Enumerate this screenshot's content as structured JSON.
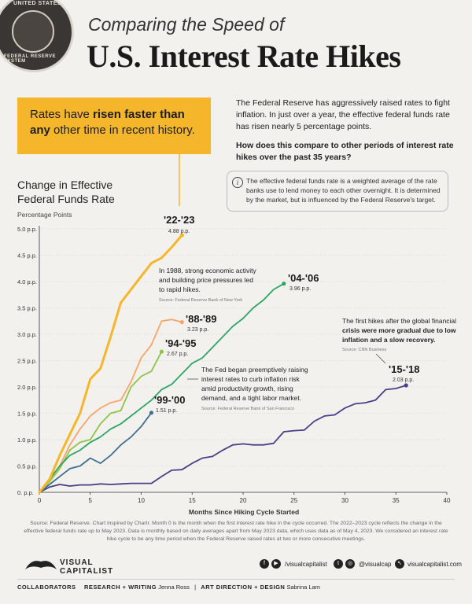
{
  "seal": {
    "text_top": "UNITED STATES",
    "text_bottom": "FEDERAL RESERVE SYSTEM"
  },
  "subtitle": "Comparing the Speed of",
  "title": "U.S. Interest Rate Hikes",
  "callout": {
    "pre": "Rates have ",
    "bold": "risen faster than any",
    "post": " other time in recent history."
  },
  "intro": {
    "p1": "The Federal Reserve has aggressively raised rates to fight inflation. In just over a year, the effective federal funds rate has risen nearly 5 percentage points.",
    "p2": "How does this compare to other periods of interest rate hikes over the past 35 years?"
  },
  "info": {
    "icon": "i",
    "text": "The effective federal funds rate is a weighted average of the rate banks use to lend money to each other overnight. It is determined by the market, but is influenced by the Federal Reserve's target."
  },
  "chart_title": "Change in Effective Federal Funds Rate",
  "ylabel": "Percentage Points",
  "xlabel": "Months Since Hiking Cycle Started",
  "annotations": {
    "a1988_l1": "In 1988, strong economic activity",
    "a1988_l2": "and building price pressures led",
    "a1988_l3": "to rapid hikes.",
    "a1988_src": "Source: Federal Reserve Bank of New York",
    "a1999_l1": "The Fed began preemptively raising",
    "a1999_l2": "interest rates to curb inflation risk",
    "a1999_l3": "amid productivity growth, rising",
    "a1999_l4": "demand, and a tight labor market.",
    "a1999_src": "Source: Federal Reserve Bank of San Francisco",
    "a2015_l1": "The first hikes after the global financial",
    "a2015_l2": "crisis were more gradual due to low",
    "a2015_l3": "inflation and a slow recovery.",
    "a2015_src": "Source: CNN Business"
  },
  "colors": {
    "c2223": "#f5b62b",
    "c8889": "#f4a56a",
    "c9495": "#8fc44a",
    "c0406": "#2ea565",
    "c9900": "#3f6f8e",
    "c1518": "#4a3f86"
  },
  "chart_data": {
    "type": "line",
    "title": "Change in Effective Federal Funds Rate",
    "xlabel": "Months Since Hiking Cycle Started",
    "ylabel": "Percentage Points",
    "xlim": [
      0,
      40
    ],
    "ylim": [
      0,
      5
    ],
    "x_ticks": [
      "0",
      "5",
      "10",
      "15",
      "20",
      "25",
      "30",
      "35",
      "40"
    ],
    "y_ticks": [
      "0. p.p.",
      "0.5 p.p.",
      "1.0 p.p.",
      "1.5 p.p.",
      "2.0 p.p.",
      "2.5 p.p.",
      "3.0 p.p.",
      "3.5 p.p.",
      "4.0 p.p.",
      "4.5 p.p.",
      "5.0 p.p."
    ],
    "series": [
      {
        "name": "'22-'23",
        "value_label": "4.88 p.p.",
        "color": "#f5b62b",
        "width": 3,
        "x": [
          0,
          1,
          2,
          3,
          4,
          5,
          6,
          7,
          8,
          9,
          10,
          11,
          12,
          13,
          14
        ],
        "y": [
          0,
          0.25,
          0.7,
          1.1,
          1.5,
          2.15,
          2.35,
          2.95,
          3.6,
          3.85,
          4.1,
          4.35,
          4.45,
          4.65,
          4.88
        ]
      },
      {
        "name": "'88-'89",
        "value_label": "3.23 p.p.",
        "color": "#f4a56a",
        "width": 1.8,
        "x": [
          0,
          1,
          2,
          3,
          4,
          5,
          6,
          7,
          8,
          9,
          10,
          11,
          12,
          13,
          14
        ],
        "y": [
          0,
          0.25,
          0.5,
          0.9,
          1.2,
          1.45,
          1.6,
          1.7,
          1.75,
          2.1,
          2.55,
          2.8,
          3.25,
          3.28,
          3.23
        ]
      },
      {
        "name": "'94-'95",
        "value_label": "2.67 p.p.",
        "color": "#8fc44a",
        "width": 1.8,
        "x": [
          0,
          1,
          2,
          3,
          4,
          5,
          6,
          7,
          8,
          9,
          10,
          11,
          12
        ],
        "y": [
          0,
          0.2,
          0.45,
          0.8,
          0.95,
          1.0,
          1.3,
          1.5,
          1.55,
          2.0,
          2.2,
          2.3,
          2.67
        ]
      },
      {
        "name": "'04-'06",
        "value_label": "3.96 p.p.",
        "color": "#2ea565",
        "width": 1.8,
        "x": [
          0,
          1,
          2,
          3,
          4,
          5,
          6,
          7,
          8,
          9,
          10,
          11,
          12,
          13,
          14,
          15,
          16,
          17,
          18,
          19,
          20,
          21,
          22,
          23,
          24
        ],
        "y": [
          0,
          0.25,
          0.5,
          0.7,
          0.8,
          0.95,
          1.05,
          1.2,
          1.3,
          1.45,
          1.6,
          1.75,
          1.95,
          2.05,
          2.25,
          2.45,
          2.55,
          2.75,
          2.95,
          3.15,
          3.3,
          3.5,
          3.65,
          3.85,
          3.96
        ]
      },
      {
        "name": "'99-'00",
        "value_label": "1.51 p.p.",
        "color": "#3f6f8e",
        "width": 1.8,
        "x": [
          0,
          1,
          2,
          3,
          4,
          5,
          6,
          7,
          8,
          9,
          10,
          11
        ],
        "y": [
          0,
          0.15,
          0.3,
          0.45,
          0.5,
          0.65,
          0.55,
          0.7,
          0.9,
          1.05,
          1.25,
          1.51
        ]
      },
      {
        "name": "'15-'18",
        "value_label": "2.03 p.p.",
        "color": "#4a3f86",
        "width": 1.8,
        "x": [
          0,
          1,
          2,
          3,
          4,
          5,
          6,
          7,
          8,
          9,
          10,
          11,
          12,
          13,
          14,
          15,
          16,
          17,
          18,
          19,
          20,
          21,
          22,
          23,
          24,
          25,
          26,
          27,
          28,
          29,
          30,
          31,
          32,
          33,
          34,
          35,
          36
        ],
        "y": [
          0,
          0.1,
          0.15,
          0.12,
          0.14,
          0.14,
          0.16,
          0.15,
          0.16,
          0.17,
          0.17,
          0.17,
          0.3,
          0.42,
          0.43,
          0.55,
          0.65,
          0.68,
          0.8,
          0.9,
          0.92,
          0.9,
          0.9,
          0.93,
          1.15,
          1.17,
          1.18,
          1.35,
          1.45,
          1.47,
          1.6,
          1.68,
          1.7,
          1.75,
          1.95,
          1.97,
          2.03
        ]
      }
    ]
  },
  "footer": {
    "source": "Source: Federal Reserve. Chart inspired by Chartr. Month 0 is the month when the first interest rate hike in the cycle occurred. The 2022–2023 cycle reflects the change in the effective federal funds rate up to May 2023. Data is monthly based on daily averages apart from May 2023 data, which uses data as of May 4, 2023. We considered an interest rate hike cycle to be any time period when the Federal Reserve raised rates at two or more consecutive meetings.",
    "brand_l1": "VISUAL",
    "brand_l2": "CAPITALIST",
    "social1": "/visualcapitalist",
    "social2": "@visualcap",
    "social3": "visualcapitalist.com",
    "collab": "COLLABORATORS",
    "research_label": "RESEARCH + WRITING",
    "research_name": "Jenna Ross",
    "art_label": "ART DIRECTION + DESIGN",
    "art_name": "Sabrina Lam"
  }
}
